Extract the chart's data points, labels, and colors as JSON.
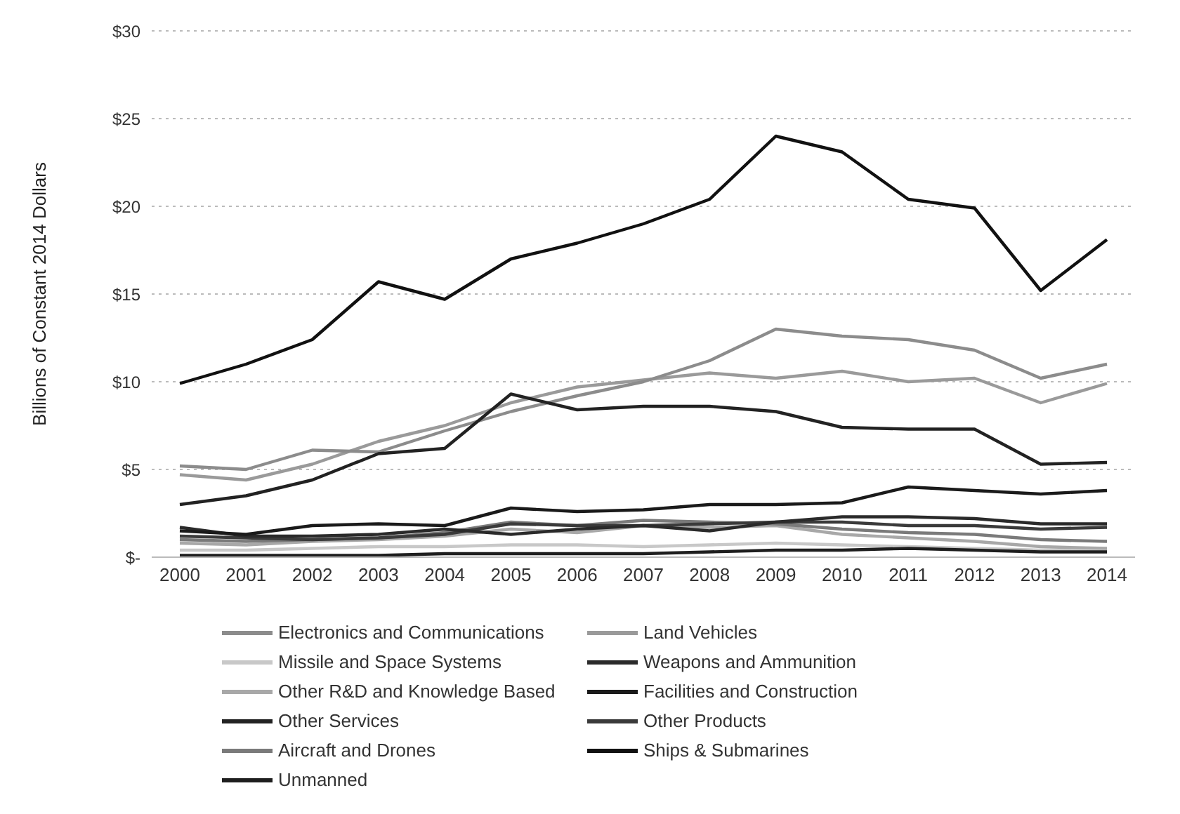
{
  "chart_data": {
    "type": "line",
    "ylabel": "Billions of Constant 2014 Dollars",
    "categories": [
      "2000",
      "2001",
      "2002",
      "2003",
      "2004",
      "2005",
      "2006",
      "2007",
      "2008",
      "2009",
      "2010",
      "2011",
      "2012",
      "2013",
      "2014"
    ],
    "ylim": [
      0,
      30
    ],
    "yticks": [
      {
        "value": 0,
        "label": "$-"
      },
      {
        "value": 5,
        "label": "$5"
      },
      {
        "value": 10,
        "label": "$10"
      },
      {
        "value": 15,
        "label": "$15"
      },
      {
        "value": 20,
        "label": "$20"
      },
      {
        "value": 25,
        "label": "$25"
      },
      {
        "value": 30,
        "label": "$30"
      }
    ],
    "grid": "y",
    "legend": "bottom",
    "marker": "none",
    "line_style": "solid",
    "series": [
      {
        "name": "Electronics and Communications",
        "color": "#8c8c8c",
        "values": [
          5.2,
          5.0,
          6.1,
          6.0,
          7.2,
          8.3,
          9.2,
          10.0,
          11.2,
          13.0,
          12.6,
          12.4,
          11.8,
          10.2,
          11.0
        ]
      },
      {
        "name": "Land Vehicles",
        "color": "#9a9a9a",
        "values": [
          4.7,
          4.4,
          5.3,
          6.6,
          7.5,
          8.8,
          9.7,
          10.1,
          10.5,
          10.2,
          10.6,
          10.0,
          10.2,
          8.8,
          9.9
        ]
      },
      {
        "name": "Missile and Space Systems",
        "color": "#c8c8c8",
        "values": [
          0.4,
          0.4,
          0.5,
          0.6,
          0.6,
          0.7,
          0.7,
          0.6,
          0.7,
          0.8,
          0.7,
          0.6,
          0.5,
          0.4,
          0.4
        ]
      },
      {
        "name": "Weapons and Ammunition",
        "color": "#2a2a2a",
        "values": [
          1.7,
          1.2,
          1.2,
          1.3,
          1.6,
          1.3,
          1.6,
          1.8,
          1.5,
          2.0,
          2.3,
          2.3,
          2.2,
          1.9,
          1.9
        ]
      },
      {
        "name": "Other R&D and Knowledge Based",
        "color": "#a8a8a8",
        "values": [
          0.8,
          0.7,
          0.9,
          1.0,
          1.2,
          1.6,
          1.4,
          1.8,
          1.7,
          1.8,
          1.3,
          1.1,
          0.9,
          0.6,
          0.5
        ]
      },
      {
        "name": "Facilities and Construction",
        "color": "#1a1a1a",
        "values": [
          1.5,
          1.3,
          1.8,
          1.9,
          1.8,
          2.8,
          2.6,
          2.7,
          3.0,
          3.0,
          3.1,
          4.0,
          3.8,
          3.6,
          3.8
        ]
      },
      {
        "name": "Other Services",
        "color": "#222222",
        "values": [
          3.0,
          3.5,
          4.4,
          5.9,
          6.2,
          9.3,
          8.4,
          8.6,
          8.6,
          8.3,
          7.4,
          7.3,
          7.3,
          5.3,
          5.4
        ]
      },
      {
        "name": "Other Products",
        "color": "#3a3a3a",
        "values": [
          1.2,
          1.1,
          1.0,
          1.1,
          1.3,
          1.9,
          1.8,
          1.8,
          1.9,
          2.0,
          2.0,
          1.8,
          1.8,
          1.6,
          1.7
        ]
      },
      {
        "name": "Aircraft and Drones",
        "color": "#7a7a7a",
        "values": [
          1.0,
          0.9,
          1.0,
          1.1,
          1.4,
          2.0,
          1.8,
          2.1,
          2.0,
          1.9,
          1.6,
          1.4,
          1.3,
          1.0,
          0.9
        ]
      },
      {
        "name": "Ships & Submarines",
        "color": "#111111",
        "values": [
          9.9,
          11.0,
          12.4,
          15.7,
          14.7,
          17.0,
          17.9,
          19.0,
          20.4,
          24.0,
          23.1,
          20.4,
          19.9,
          15.2,
          18.1
        ]
      },
      {
        "name": "Unmanned",
        "color": "#1e1e1e",
        "values": [
          0.1,
          0.1,
          0.1,
          0.1,
          0.2,
          0.2,
          0.2,
          0.2,
          0.3,
          0.4,
          0.4,
          0.5,
          0.4,
          0.3,
          0.3
        ]
      }
    ]
  }
}
